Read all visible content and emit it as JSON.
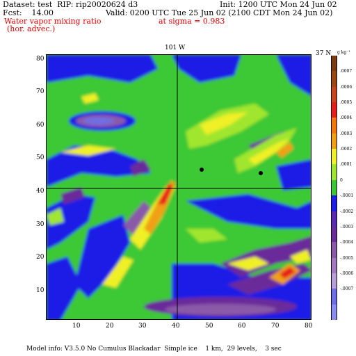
{
  "header": {
    "dataset": "Dataset: test  RIP: rip20020624 d3",
    "init": "Init: 1200 UTC Mon 24 Jun 02",
    "fcst": "Fcst:    14.00",
    "valid": "Valid: 0200 UTC Tue 25 Jun 02 (2100 CDT Mon 24 Jun 02)",
    "field_name": "Water vapor mixing ratio",
    "field_sub": "(hor. advec.)",
    "level": "at sigma = 0.983"
  },
  "map": {
    "top_marker": "101 W",
    "right_marker": "37 N",
    "x_ticks": [
      "10",
      "20",
      "30",
      "40",
      "50",
      "60",
      "70",
      "80"
    ],
    "y_ticks": [
      "10",
      "20",
      "30",
      "40",
      "50",
      "60",
      "70",
      "80"
    ],
    "colors": {
      "strong_neg": "#6e6ee6",
      "neg3": "#8a5aa8",
      "neg2": "#6a2a9a",
      "neg1": "#1e1ee6",
      "zero": "#3cc836",
      "pos1": "#a0e62e",
      "pos2": "#f0f028",
      "pos3": "#f0a014",
      "pos4": "#e61e1e",
      "pos5": "#7a3a14"
    }
  },
  "colorbar": {
    "units": "g kg⁻¹",
    "labels": [
      ".0007",
      ".0006",
      ".0005",
      ".0004",
      ".0003",
      ".0002",
      ".0001",
      "0",
      "-.0001",
      "-.0002",
      "-.0003",
      "-.0004",
      "-.0005",
      "-.0006",
      "-.0007"
    ]
  },
  "footer": "Model info: V3.5.0 No Cumulus Blackadar  Simple ice    1 km,  29 levels,    3 sec"
}
